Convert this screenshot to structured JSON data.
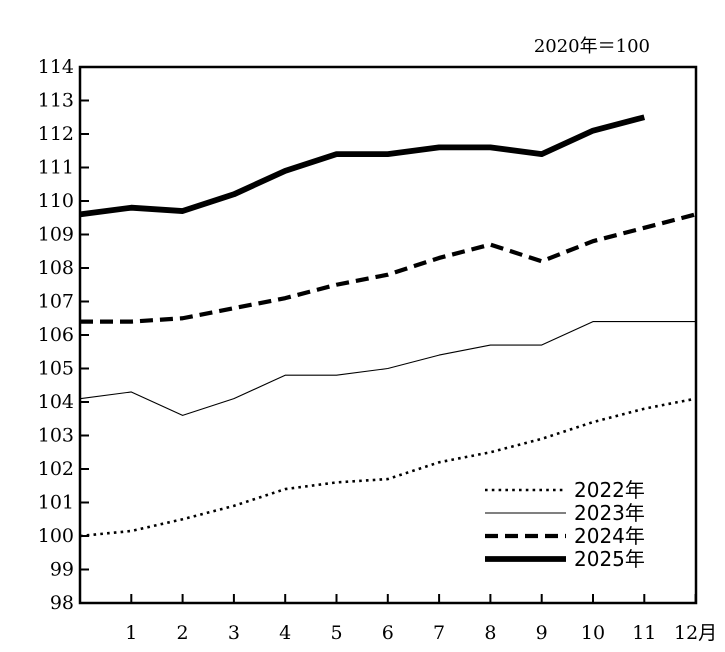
{
  "chart_data": {
    "type": "line",
    "note": "2020年＝100",
    "x_categories": [
      "",
      "1",
      "2",
      "3",
      "4",
      "5",
      "6",
      "7",
      "8",
      "9",
      "10",
      "11",
      "12月"
    ],
    "ylim": [
      98,
      114
    ],
    "y_ticks": [
      98,
      99,
      100,
      101,
      102,
      103,
      104,
      105,
      106,
      107,
      108,
      109,
      110,
      111,
      112,
      113,
      114
    ],
    "series": [
      {
        "name": "2022年",
        "style": "dotted",
        "color": "#000000",
        "values": [
          100.0,
          100.15,
          100.5,
          100.9,
          101.4,
          101.6,
          101.7,
          102.2,
          102.5,
          102.9,
          103.4,
          103.8,
          104.1
        ]
      },
      {
        "name": "2023年",
        "style": "thin",
        "color": "#000000",
        "values": [
          104.1,
          104.3,
          103.6,
          104.1,
          104.8,
          104.8,
          105.0,
          105.4,
          105.7,
          105.7,
          106.4,
          106.4,
          106.4
        ]
      },
      {
        "name": "2024年",
        "style": "dashed",
        "color": "#000000",
        "values": [
          106.4,
          106.4,
          106.5,
          106.8,
          107.1,
          107.5,
          107.8,
          108.3,
          108.7,
          108.2,
          108.8,
          109.2,
          109.6
        ]
      },
      {
        "name": "2025年",
        "style": "thick",
        "color": "#000000",
        "values": [
          109.6,
          109.8,
          109.7,
          110.2,
          110.9,
          111.4,
          111.4,
          111.6,
          111.6,
          111.4,
          112.1,
          112.5,
          null
        ]
      }
    ],
    "legend_position": "bottom-right"
  }
}
